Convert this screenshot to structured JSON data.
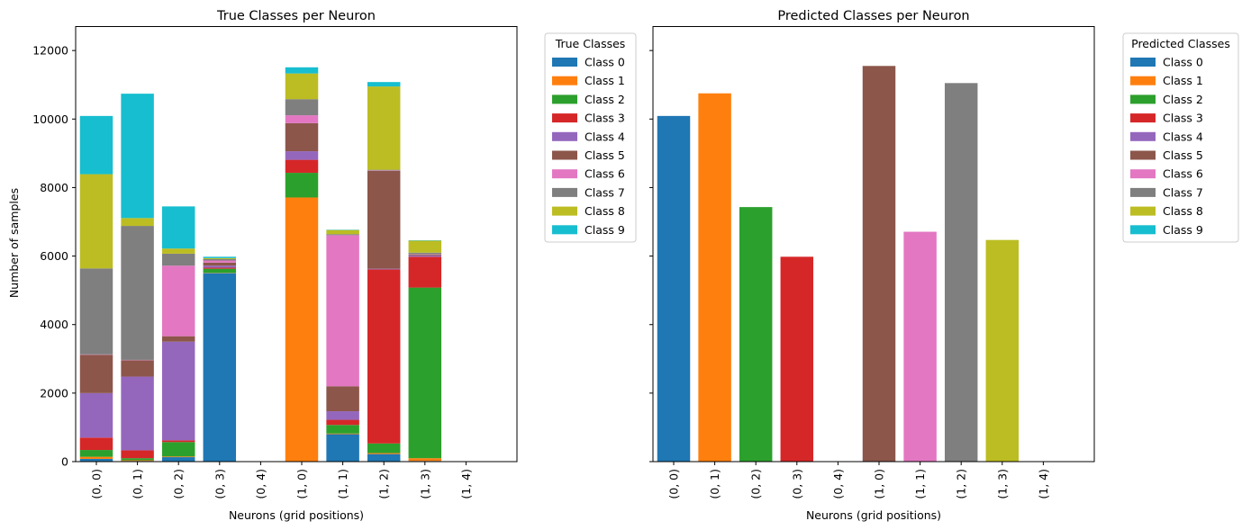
{
  "chart_data": [
    {
      "type": "bar",
      "stacked": true,
      "title": "True Classes per Neuron",
      "xlabel": "Neurons (grid positions)",
      "ylabel": "Number of samples",
      "ylim": [
        0,
        12700
      ],
      "yticks": [
        0,
        2000,
        4000,
        6000,
        8000,
        10000,
        12000
      ],
      "categories": [
        "(0, 0)",
        "(0, 1)",
        "(0, 2)",
        "(0, 3)",
        "(0, 4)",
        "(1, 0)",
        "(1, 1)",
        "(1, 2)",
        "(1, 3)",
        "(1, 4)"
      ],
      "legend": {
        "title": "True Classes",
        "placement": "outside upper right"
      },
      "series": [
        {
          "name": "Class 0",
          "color": "#1f77b4",
          "values": [
            80,
            20,
            130,
            5500,
            0,
            10,
            800,
            220,
            20,
            0
          ]
        },
        {
          "name": "Class 1",
          "color": "#ff7f0e",
          "values": [
            60,
            20,
            20,
            10,
            0,
            7700,
            20,
            30,
            80,
            0
          ]
        },
        {
          "name": "Class 2",
          "color": "#2ca02c",
          "values": [
            200,
            60,
            420,
            120,
            0,
            720,
            250,
            280,
            4980,
            0
          ]
        },
        {
          "name": "Class 3",
          "color": "#d62728",
          "values": [
            360,
            230,
            50,
            30,
            0,
            380,
            150,
            5080,
            900,
            0
          ]
        },
        {
          "name": "Class 4",
          "color": "#9467bd",
          "values": [
            1300,
            2150,
            2880,
            60,
            0,
            250,
            250,
            20,
            40,
            0
          ]
        },
        {
          "name": "Class 5",
          "color": "#8c564b",
          "values": [
            1120,
            480,
            160,
            90,
            0,
            820,
            730,
            2860,
            30,
            0
          ]
        },
        {
          "name": "Class 6",
          "color": "#e377c2",
          "values": [
            10,
            10,
            2060,
            60,
            0,
            230,
            4410,
            10,
            10,
            0
          ]
        },
        {
          "name": "Class 7",
          "color": "#7f7f7f",
          "values": [
            2510,
            3910,
            350,
            40,
            0,
            470,
            30,
            20,
            40,
            0
          ]
        },
        {
          "name": "Class 8",
          "color": "#bcbd22",
          "values": [
            2750,
            230,
            150,
            30,
            0,
            750,
            120,
            2430,
            350,
            0
          ]
        },
        {
          "name": "Class 9",
          "color": "#17becf",
          "values": [
            1700,
            3630,
            1230,
            40,
            0,
            180,
            10,
            130,
            10,
            0
          ]
        }
      ]
    },
    {
      "type": "bar",
      "stacked": true,
      "title": "Predicted Classes per Neuron",
      "xlabel": "Neurons (grid positions)",
      "ylabel": "",
      "ylim": [
        0,
        12700
      ],
      "shared_y_with_left": true,
      "categories": [
        "(0, 0)",
        "(0, 1)",
        "(0, 2)",
        "(0, 3)",
        "(0, 4)",
        "(1, 0)",
        "(1, 1)",
        "(1, 2)",
        "(1, 3)",
        "(1, 4)"
      ],
      "legend": {
        "title": "Predicted Classes",
        "placement": "outside upper right"
      },
      "series": [
        {
          "name": "Class 0",
          "color": "#1f77b4",
          "values": [
            10090,
            0,
            0,
            0,
            0,
            0,
            0,
            0,
            0,
            0
          ]
        },
        {
          "name": "Class 1",
          "color": "#ff7f0e",
          "values": [
            0,
            10750,
            0,
            0,
            0,
            0,
            0,
            0,
            0,
            0
          ]
        },
        {
          "name": "Class 2",
          "color": "#2ca02c",
          "values": [
            0,
            0,
            7430,
            0,
            0,
            0,
            0,
            0,
            0,
            0
          ]
        },
        {
          "name": "Class 3",
          "color": "#d62728",
          "values": [
            0,
            0,
            0,
            5980,
            0,
            0,
            0,
            0,
            0,
            0
          ]
        },
        {
          "name": "Class 4",
          "color": "#9467bd",
          "values": [
            0,
            0,
            0,
            0,
            0,
            0,
            0,
            0,
            0,
            0
          ]
        },
        {
          "name": "Class 5",
          "color": "#8c564b",
          "values": [
            0,
            0,
            0,
            0,
            0,
            11550,
            0,
            0,
            0,
            0
          ]
        },
        {
          "name": "Class 6",
          "color": "#e377c2",
          "values": [
            0,
            0,
            0,
            0,
            0,
            0,
            6710,
            0,
            0,
            0
          ]
        },
        {
          "name": "Class 7",
          "color": "#7f7f7f",
          "values": [
            0,
            0,
            0,
            0,
            0,
            0,
            0,
            11050,
            0,
            0
          ]
        },
        {
          "name": "Class 8",
          "color": "#bcbd22",
          "values": [
            0,
            0,
            0,
            0,
            0,
            0,
            0,
            0,
            6470,
            0
          ]
        },
        {
          "name": "Class 9",
          "color": "#17becf",
          "values": [
            0,
            0,
            0,
            0,
            0,
            0,
            0,
            0,
            0,
            0
          ]
        }
      ]
    }
  ]
}
